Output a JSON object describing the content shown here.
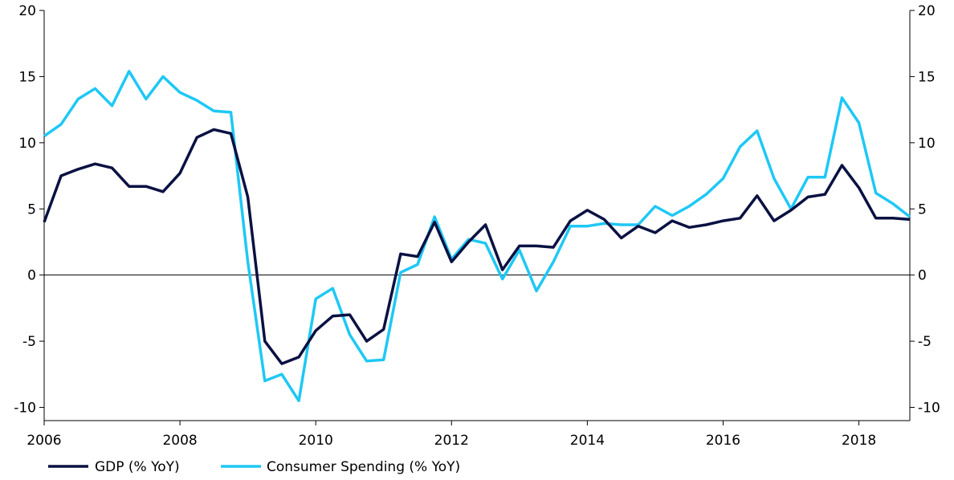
{
  "chart_data": {
    "type": "line",
    "title": "",
    "xlabel": "",
    "ylabel": "",
    "xlim": [
      2006.0,
      2018.75
    ],
    "ylim": [
      -11,
      20
    ],
    "x_ticks": [
      2006,
      2008,
      2010,
      2012,
      2014,
      2016,
      2018
    ],
    "x_tick_labels": [
      "2006",
      "2008",
      "2010",
      "2012",
      "2014",
      "2016",
      "2018"
    ],
    "y_ticks": [
      -10,
      -5,
      0,
      5,
      10,
      15,
      20
    ],
    "y_tick_labels": [
      "-10",
      "-5",
      "0",
      "5",
      "10",
      "15",
      "20"
    ],
    "grid": false,
    "zero_line": true,
    "legend_position": "bottom-left",
    "x": [
      2006.0,
      2006.25,
      2006.5,
      2006.75,
      2007.0,
      2007.25,
      2007.5,
      2007.75,
      2008.0,
      2008.25,
      2008.5,
      2008.75,
      2009.0,
      2009.25,
      2009.5,
      2009.75,
      2010.0,
      2010.25,
      2010.5,
      2010.75,
      2011.0,
      2011.25,
      2011.5,
      2011.75,
      2012.0,
      2012.25,
      2012.5,
      2012.75,
      2013.0,
      2013.25,
      2013.5,
      2013.75,
      2014.0,
      2014.25,
      2014.5,
      2014.75,
      2015.0,
      2015.25,
      2015.5,
      2015.75,
      2016.0,
      2016.25,
      2016.5,
      2016.75,
      2017.0,
      2017.25,
      2017.5,
      2017.75,
      2018.0,
      2018.25,
      2018.5,
      2018.75
    ],
    "series": [
      {
        "name": "GDP (% YoY)",
        "color": "#0a1142",
        "values": [
          4.0,
          7.5,
          8.0,
          8.4,
          8.1,
          6.7,
          6.7,
          6.3,
          7.7,
          10.4,
          11.0,
          10.7,
          5.9,
          -5.0,
          -6.7,
          -6.2,
          -4.2,
          -3.1,
          -3.0,
          -5.0,
          -4.1,
          1.6,
          1.4,
          4.0,
          1.0,
          2.5,
          3.8,
          0.4,
          2.2,
          2.2,
          2.1,
          4.1,
          4.9,
          4.2,
          2.8,
          3.7,
          3.2,
          4.1,
          3.6,
          3.8,
          4.1,
          4.3,
          6.0,
          4.1,
          4.9,
          5.9,
          6.1,
          8.3,
          6.6,
          4.3,
          4.3,
          4.2
        ]
      },
      {
        "name": "Consumer Spending (% YoY)",
        "color": "#1ec8f5",
        "values": [
          10.5,
          11.4,
          13.3,
          14.1,
          12.8,
          15.4,
          13.3,
          15.0,
          13.8,
          13.2,
          12.4,
          12.3,
          1.0,
          -8.0,
          -7.5,
          -9.5,
          -1.8,
          -1.0,
          -4.5,
          -6.5,
          -6.4,
          0.2,
          0.8,
          4.4,
          1.2,
          2.7,
          2.4,
          -0.3,
          1.9,
          -1.2,
          1.0,
          3.7,
          3.7,
          3.9,
          3.8,
          3.8,
          5.2,
          4.5,
          5.2,
          6.1,
          7.3,
          9.7,
          10.9,
          7.3,
          5.0,
          7.4,
          7.4,
          13.4,
          11.5,
          6.2,
          5.4,
          4.4
        ]
      }
    ]
  }
}
